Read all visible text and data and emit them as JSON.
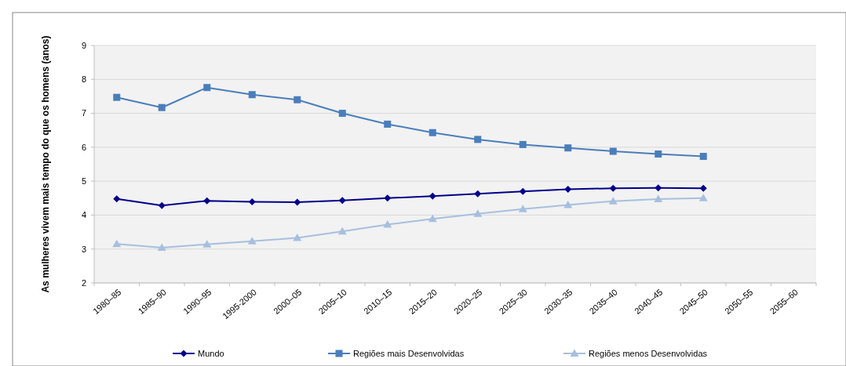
{
  "chart_data": {
    "type": "line",
    "ylabel": "As mulheres vivem mais tempo do que os homens (anos)",
    "categories": [
      "1980–85",
      "1985–90",
      "1990–95",
      "1995-2000",
      "2000–05",
      "2005–10",
      "2010–15",
      "2015–20",
      "2020–25",
      "2025–30",
      "2030–35",
      "2035–40",
      "2040–45",
      "2045–50",
      "2050–55",
      "2055–60"
    ],
    "series": [
      {
        "name": "Mundo",
        "color": "#00008b",
        "marker": "diamond",
        "values": [
          4.48,
          4.28,
          4.42,
          4.39,
          4.38,
          4.43,
          4.5,
          4.56,
          4.63,
          4.7,
          4.76,
          4.79,
          4.8,
          4.79,
          null,
          null
        ]
      },
      {
        "name": "Regiões mais Desenvolvidas",
        "color": "#4a7ebb",
        "marker": "square",
        "values": [
          7.47,
          7.17,
          7.76,
          7.55,
          7.4,
          7.0,
          6.68,
          6.43,
          6.23,
          6.08,
          5.98,
          5.88,
          5.8,
          5.73,
          null,
          null
        ]
      },
      {
        "name": "Regiões menos Desenvolvidas",
        "color": "#a7bfde",
        "marker": "triangle",
        "values": [
          3.15,
          3.04,
          3.14,
          3.23,
          3.33,
          3.52,
          3.72,
          3.89,
          4.04,
          4.18,
          4.3,
          4.41,
          4.47,
          4.5,
          null,
          null
        ]
      }
    ],
    "ylim": [
      2,
      9
    ],
    "yticks": [
      2,
      3,
      4,
      5,
      6,
      7,
      8,
      9
    ],
    "grid": "y",
    "legend": "bottom"
  }
}
